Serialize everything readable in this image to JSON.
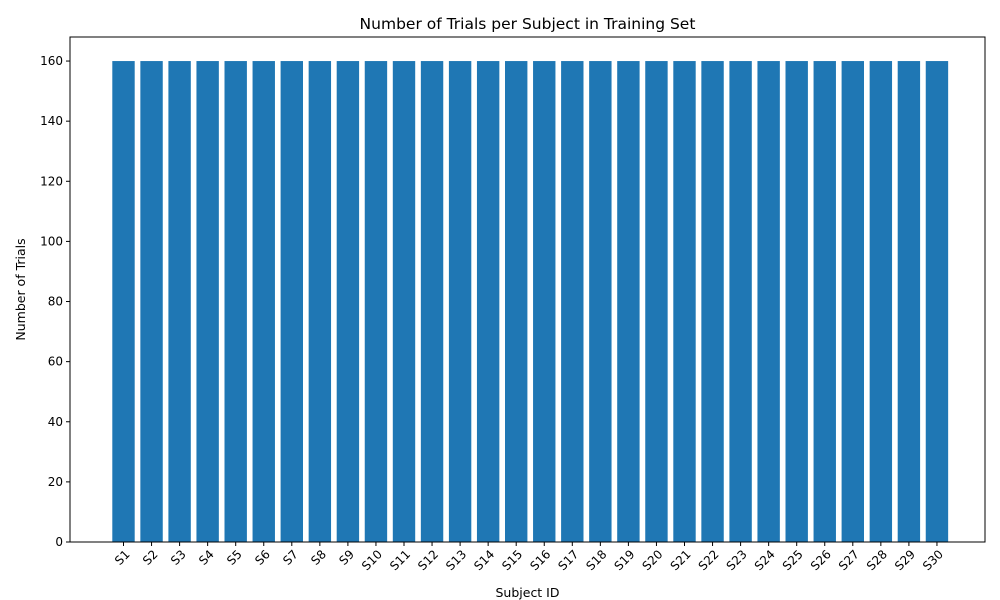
{
  "chart_data": {
    "type": "bar",
    "title": "Number of Trials per Subject in Training Set",
    "xlabel": "Subject ID",
    "ylabel": "Number of Trials",
    "categories": [
      "S1",
      "S2",
      "S3",
      "S4",
      "S5",
      "S6",
      "S7",
      "S8",
      "S9",
      "S10",
      "S11",
      "S12",
      "S13",
      "S14",
      "S15",
      "S16",
      "S17",
      "S18",
      "S19",
      "S20",
      "S21",
      "S22",
      "S23",
      "S24",
      "S25",
      "S26",
      "S27",
      "S28",
      "S29",
      "S30"
    ],
    "values": [
      160,
      160,
      160,
      160,
      160,
      160,
      160,
      160,
      160,
      160,
      160,
      160,
      160,
      160,
      160,
      160,
      160,
      160,
      160,
      160,
      160,
      160,
      160,
      160,
      160,
      160,
      160,
      160,
      160,
      160
    ],
    "ylim": [
      0,
      168
    ],
    "yticks": [
      0,
      20,
      40,
      60,
      80,
      100,
      120,
      140,
      160
    ],
    "x_tick_rotation_deg": 45,
    "grid": false,
    "bar_color": "#1f77b4"
  }
}
